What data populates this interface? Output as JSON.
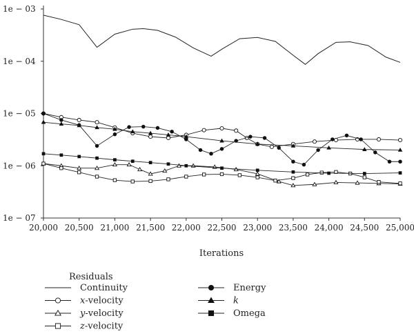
{
  "chart_data": {
    "type": "line",
    "xlabel": "Iterations",
    "ylabel": "",
    "y_scale": "log",
    "xlim": [
      20000,
      25000
    ],
    "ylim": [
      1e-07,
      0.001
    ],
    "x_ticks": [
      20000,
      20500,
      21000,
      21500,
      22000,
      22500,
      23000,
      23500,
      24000,
      24500,
      25000
    ],
    "x_tick_labels": [
      "20,000",
      "20,500",
      "21,000",
      "21,500",
      "22,000",
      "22,500",
      "23,000",
      "23,500",
      "24,000",
      "24,500",
      "25,000"
    ],
    "y_ticks": [
      0.001,
      0.0001,
      1e-05,
      1e-06,
      1e-07
    ],
    "y_tick_labels": [
      "1e − 03",
      "1e − 04",
      "1e − 05",
      "1e − 06",
      "1e − 07"
    ],
    "legend": {
      "title": "Residuals",
      "placement": "bottom"
    },
    "series": [
      {
        "name": "Continuity",
        "marker": "none",
        "x": [
          20000,
          20250,
          20500,
          20750,
          21000,
          21250,
          21400,
          21600,
          21850,
          22100,
          22350,
          22500,
          22750,
          23000,
          23250,
          23500,
          23670,
          23850,
          24100,
          24300,
          24550,
          24800,
          25000
        ],
        "y": [
          0.00076,
          0.00063,
          0.0005,
          0.000185,
          0.00033,
          0.00041,
          0.00042,
          0.00039,
          0.00029,
          0.00018,
          0.000125,
          0.00017,
          0.00027,
          0.000285,
          0.00024,
          0.00013,
          8.7e-05,
          0.00014,
          0.00023,
          0.000235,
          0.0002,
          0.00012,
          9.5e-05
        ]
      },
      {
        "name": "x-velocity",
        "marker": "open-circle",
        "x": [
          20000,
          20250,
          20500,
          20750,
          21000,
          21250,
          21500,
          21750,
          22000,
          22250,
          22500,
          22700,
          22850,
          23000,
          23200,
          23500,
          23800,
          24100,
          24400,
          24700,
          25000
        ],
        "y": [
          1e-05,
          8.5e-06,
          7.5e-06,
          6.8e-06,
          5.4e-06,
          4.2e-06,
          3.6e-06,
          3.4e-06,
          3.9e-06,
          4.8e-06,
          5.2e-06,
          4.7e-06,
          3.4e-06,
          2.6e-06,
          2.3e-06,
          2.6e-06,
          2.9e-06,
          3.1e-06,
          3.2e-06,
          3.2e-06,
          3.1e-06
        ]
      },
      {
        "name": "y-velocity",
        "marker": "open-triangle",
        "x": [
          20000,
          20250,
          20500,
          20750,
          21000,
          21200,
          21350,
          21500,
          21700,
          21900,
          22100,
          22400,
          22700,
          23000,
          23300,
          23500,
          23800,
          24100,
          24400,
          24700,
          25000
        ],
        "y": [
          1.1e-06,
          1e-06,
          9e-07,
          9e-07,
          1.05e-06,
          1.05e-06,
          8.5e-07,
          7e-07,
          8e-07,
          1e-06,
          1e-06,
          9.5e-07,
          8.5e-07,
          7e-07,
          5e-07,
          4.2e-07,
          4.4e-07,
          4.8e-07,
          4.7e-07,
          4.6e-07,
          4.5e-07
        ]
      },
      {
        "name": "z-velocity",
        "marker": "open-square",
        "x": [
          20000,
          20250,
          20500,
          20750,
          21000,
          21250,
          21500,
          21750,
          22000,
          22250,
          22500,
          22750,
          23000,
          23250,
          23500,
          23700,
          23900,
          24100,
          24300,
          24500,
          24700,
          25000
        ],
        "y": [
          1.1e-06,
          9e-07,
          7.5e-07,
          6.2e-07,
          5.3e-07,
          5e-07,
          5.1e-07,
          5.5e-07,
          6.2e-07,
          6.8e-07,
          6.9e-07,
          6.6e-07,
          6e-07,
          5.2e-07,
          5.8e-07,
          6.8e-07,
          7.4e-07,
          7.6e-07,
          7.1e-07,
          6e-07,
          4.9e-07,
          4.6e-07
        ]
      },
      {
        "name": "Energy",
        "marker": "filled-circle",
        "x": [
          20000,
          20250,
          20500,
          20750,
          21000,
          21200,
          21400,
          21600,
          21800,
          22000,
          22200,
          22350,
          22500,
          22700,
          22900,
          23100,
          23300,
          23500,
          23650,
          23850,
          24050,
          24250,
          24450,
          24650,
          24850,
          25000
        ],
        "y": [
          1e-05,
          7.5e-06,
          6e-06,
          2.4e-06,
          4e-06,
          5.5e-06,
          5.6e-06,
          5.3e-06,
          4.5e-06,
          3.2e-06,
          2e-06,
          1.7e-06,
          2.1e-06,
          3e-06,
          3.6e-06,
          3.4e-06,
          2.2e-06,
          1.2e-06,
          1.05e-06,
          2e-06,
          3.2e-06,
          3.8e-06,
          3.2e-06,
          1.8e-06,
          1.2e-06,
          1.2e-06
        ]
      },
      {
        "name": "k",
        "marker": "filled-triangle",
        "x": [
          20000,
          20250,
          20500,
          20750,
          21000,
          21250,
          21500,
          21750,
          22000,
          22500,
          23000,
          23500,
          24000,
          24500,
          25000
        ],
        "y": [
          6.8e-06,
          6.3e-06,
          5.9e-06,
          5.4e-06,
          5e-06,
          4.5e-06,
          4.2e-06,
          3.9e-06,
          3.6e-06,
          3e-06,
          2.6e-06,
          2.4e-06,
          2.2e-06,
          2.05e-06,
          2e-06
        ]
      },
      {
        "name": "Omega",
        "marker": "filled-square",
        "x": [
          20000,
          20250,
          20500,
          20750,
          21000,
          21250,
          21500,
          21750,
          22000,
          22500,
          23000,
          23500,
          24000,
          24500,
          25000
        ],
        "y": [
          1.7e-06,
          1.6e-06,
          1.5e-06,
          1.4e-06,
          1.3e-06,
          1.22e-06,
          1.15e-06,
          1.08e-06,
          1e-06,
          9e-07,
          8.2e-07,
          7.6e-07,
          7.2e-07,
          7.1e-07,
          7.3e-07
        ]
      }
    ]
  }
}
